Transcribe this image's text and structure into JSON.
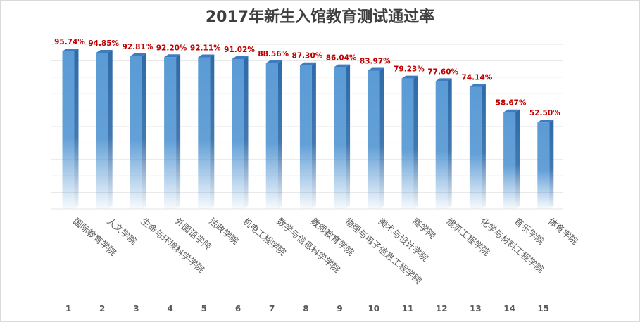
{
  "chart_data": {
    "type": "bar",
    "title": "2017年新生入馆教育测试通过率",
    "categories": [
      "国际教育学院",
      "人文学院",
      "生命与环境科学学院",
      "外国语学院",
      "法政学院",
      "机电工程学院",
      "数学与信息科学学院",
      "教师教育学院",
      "物理与电子信息工程学院",
      "美术与设计学院",
      "商学院",
      "建筑工程学院",
      "化学与材料工程学院",
      "音乐学院",
      "体育学院"
    ],
    "ranks": [
      "1",
      "2",
      "3",
      "4",
      "5",
      "6",
      "7",
      "8",
      "9",
      "10",
      "11",
      "12",
      "13",
      "14",
      "15"
    ],
    "values": [
      95.74,
      94.85,
      92.81,
      92.2,
      92.11,
      91.02,
      88.56,
      87.3,
      86.04,
      83.97,
      79.23,
      77.6,
      74.14,
      58.67,
      52.5
    ],
    "value_labels": [
      "95.74%",
      "94.85%",
      "92.81%",
      "92.20%",
      "92.11%",
      "91.02%",
      "88.56%",
      "87.30%",
      "86.04%",
      "83.97%",
      "79.23%",
      "77.60%",
      "74.14%",
      "58.67%",
      "52.50%"
    ],
    "ylim": [
      0,
      100
    ],
    "grid": true,
    "legend": "none",
    "colors": {
      "bar": "#5b9bd5",
      "bar_side": "#2e6aa8",
      "label": "#c00000",
      "grid": "#e6e6e6",
      "axis_text": "#595959"
    }
  }
}
